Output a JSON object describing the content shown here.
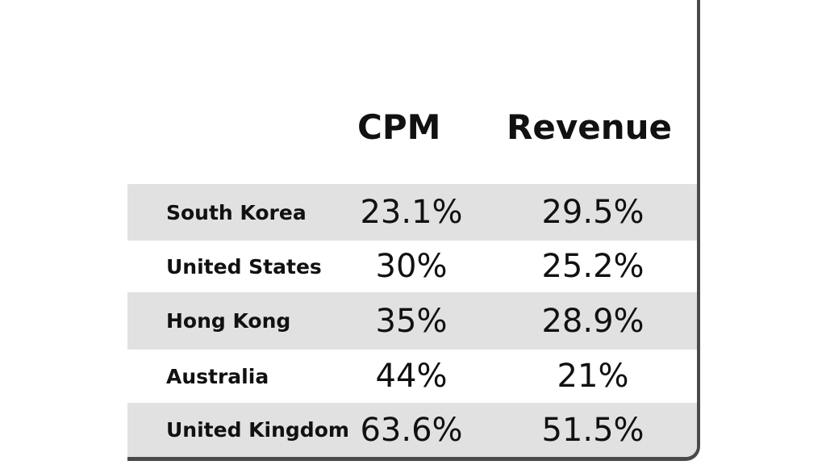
{
  "chart_data": {
    "type": "table",
    "columns": [
      "",
      "CPM",
      "Revenue"
    ],
    "rows": [
      {
        "country": "South Korea",
        "cpm": "23.1%",
        "revenue": "29.5%"
      },
      {
        "country": "United States",
        "cpm": "30%",
        "revenue": "25.2%"
      },
      {
        "country": "Hong Kong",
        "cpm": "35%",
        "revenue": "28.9%"
      },
      {
        "country": "Australia",
        "cpm": "44%",
        "revenue": "21%"
      },
      {
        "country": "United Kingdom",
        "cpm": "63.6%",
        "revenue": "51.5%"
      }
    ],
    "row_shading": [
      "shaded",
      "plain",
      "shaded",
      "plain",
      "shaded"
    ]
  },
  "colors": {
    "shaded_row": "#e2e1e2",
    "border": "#4a4a4a",
    "text": "#111111"
  }
}
